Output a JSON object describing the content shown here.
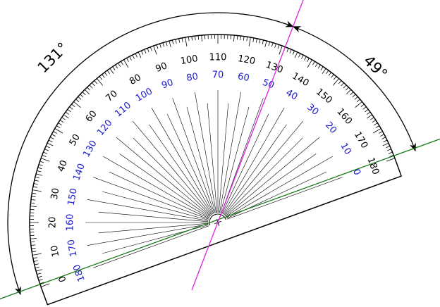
{
  "angle_labels": {
    "left": "131°",
    "right": "49°"
  },
  "outer_scale": [
    0,
    10,
    20,
    30,
    40,
    50,
    60,
    70,
    80,
    90,
    100,
    110,
    120,
    130,
    140,
    150,
    160,
    170,
    180
  ],
  "inner_scale": [
    0,
    10,
    20,
    30,
    40,
    50,
    60,
    70,
    80,
    90,
    100,
    110,
    120,
    130,
    140,
    150,
    160,
    170,
    180
  ]
}
